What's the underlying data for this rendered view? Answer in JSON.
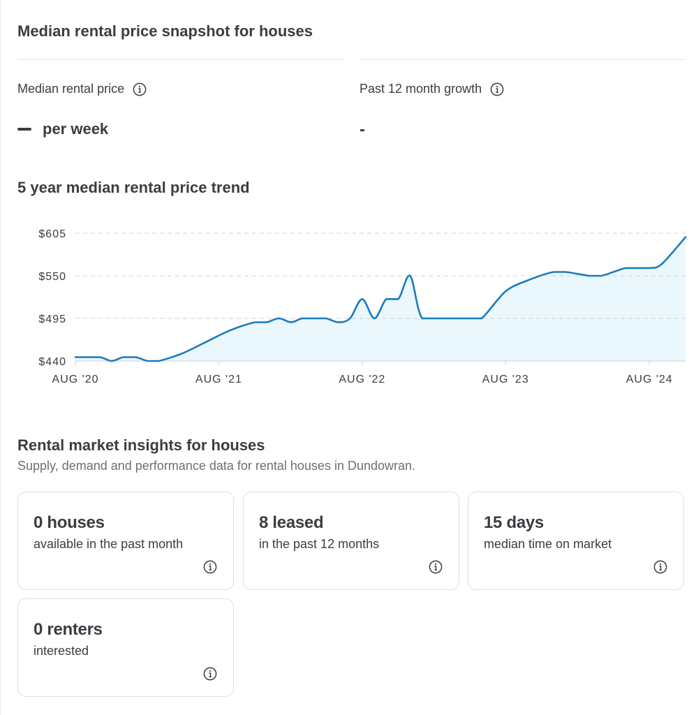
{
  "snapshot": {
    "title": "Median rental price snapshot for houses",
    "median_label": "Median rental price",
    "median_value": "per week",
    "growth_label": "Past 12 month growth",
    "growth_value": "-"
  },
  "icons": {
    "info": "info-circle-icon"
  },
  "colors": {
    "line": "#1b7cbd",
    "area": "#eaf7fc",
    "text": "#3c3c43",
    "muted": "#6e6e78",
    "card_border": "#dedee3"
  },
  "chart_title": "5 year median rental price trend",
  "chart_data": {
    "type": "area",
    "xlim": [
      "2020-08-01",
      "2024-11-01"
    ],
    "ylim": [
      440,
      605
    ],
    "y_ticks": [
      440,
      495,
      550,
      605
    ],
    "y_tick_labels": [
      "$440",
      "$495",
      "$550",
      "$605"
    ],
    "x_ticks": [
      "2020-08-01",
      "2021-08-01",
      "2022-08-01",
      "2023-08-01",
      "2024-08-01"
    ],
    "x_tick_labels": [
      "AUG '20",
      "AUG '21",
      "AUG '22",
      "AUG '23",
      "AUG '24"
    ],
    "grid": true,
    "series": [
      {
        "x": [
          "2020-08-01",
          "2020-10-01",
          "2020-11-01",
          "2020-12-01",
          "2021-01-01",
          "2021-02-01",
          "2021-03-01",
          "2021-05-01",
          "2021-07-01",
          "2021-09-01",
          "2021-11-01",
          "2021-12-01",
          "2022-01-01",
          "2022-02-01",
          "2022-03-01",
          "2022-04-01",
          "2022-05-01",
          "2022-06-01",
          "2022-07-01",
          "2022-08-01",
          "2022-09-01",
          "2022-10-01",
          "2022-11-01",
          "2022-12-01",
          "2023-01-01",
          "2023-03-01",
          "2023-05-01",
          "2023-06-01",
          "2023-08-01",
          "2023-10-01",
          "2023-12-01",
          "2024-01-01",
          "2024-03-01",
          "2024-04-01",
          "2024-06-01",
          "2024-07-01",
          "2024-08-01",
          "2024-09-01",
          "2024-11-01"
        ],
        "y": [
          445,
          445,
          440,
          445,
          445,
          440,
          440,
          450,
          465,
          480,
          490,
          490,
          495,
          490,
          495,
          495,
          495,
          490,
          495,
          520,
          495,
          520,
          520,
          550,
          495,
          495,
          495,
          495,
          530,
          545,
          555,
          555,
          550,
          550,
          560,
          560,
          560,
          565,
          600
        ]
      }
    ]
  },
  "insights": {
    "title": "Rental market insights for houses",
    "subtitle": "Supply, demand and performance data for rental houses in Dundowran.",
    "cards": [
      {
        "value": "0 houses",
        "desc": "available in the past month"
      },
      {
        "value": "8 leased",
        "desc": "in the past 12 months"
      },
      {
        "value": "15 days",
        "desc": "median time on market"
      },
      {
        "value": "0 renters",
        "desc": "interested"
      }
    ]
  }
}
